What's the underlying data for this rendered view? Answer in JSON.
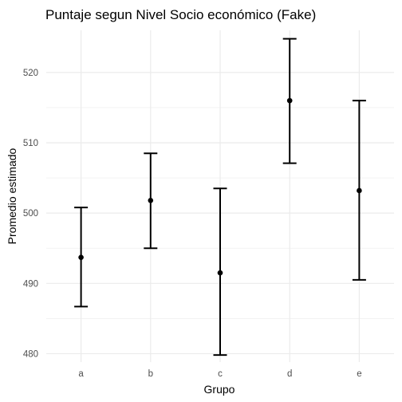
{
  "chart_data": {
    "type": "errorbar",
    "title": "Puntaje segun Nivel Socio económico (Fake)",
    "xlabel": "Grupo",
    "ylabel": "Promedio estimado",
    "categories": [
      "a",
      "b",
      "c",
      "d",
      "e"
    ],
    "series": [
      {
        "estimate": [
          493.7,
          501.8,
          491.5,
          516.0,
          503.2
        ],
        "lower": [
          486.7,
          495.0,
          479.8,
          507.1,
          490.5
        ],
        "upper": [
          500.8,
          508.5,
          503.5,
          524.8,
          516.0
        ]
      }
    ],
    "ylim": [
      478.8,
      526.0
    ],
    "yticks": [
      480,
      490,
      500,
      510,
      520
    ],
    "grid": true,
    "legend": "none",
    "colors": {
      "marks": "#000000",
      "grid": "#ebebeb",
      "tick_text": "#4d4d4d"
    }
  }
}
